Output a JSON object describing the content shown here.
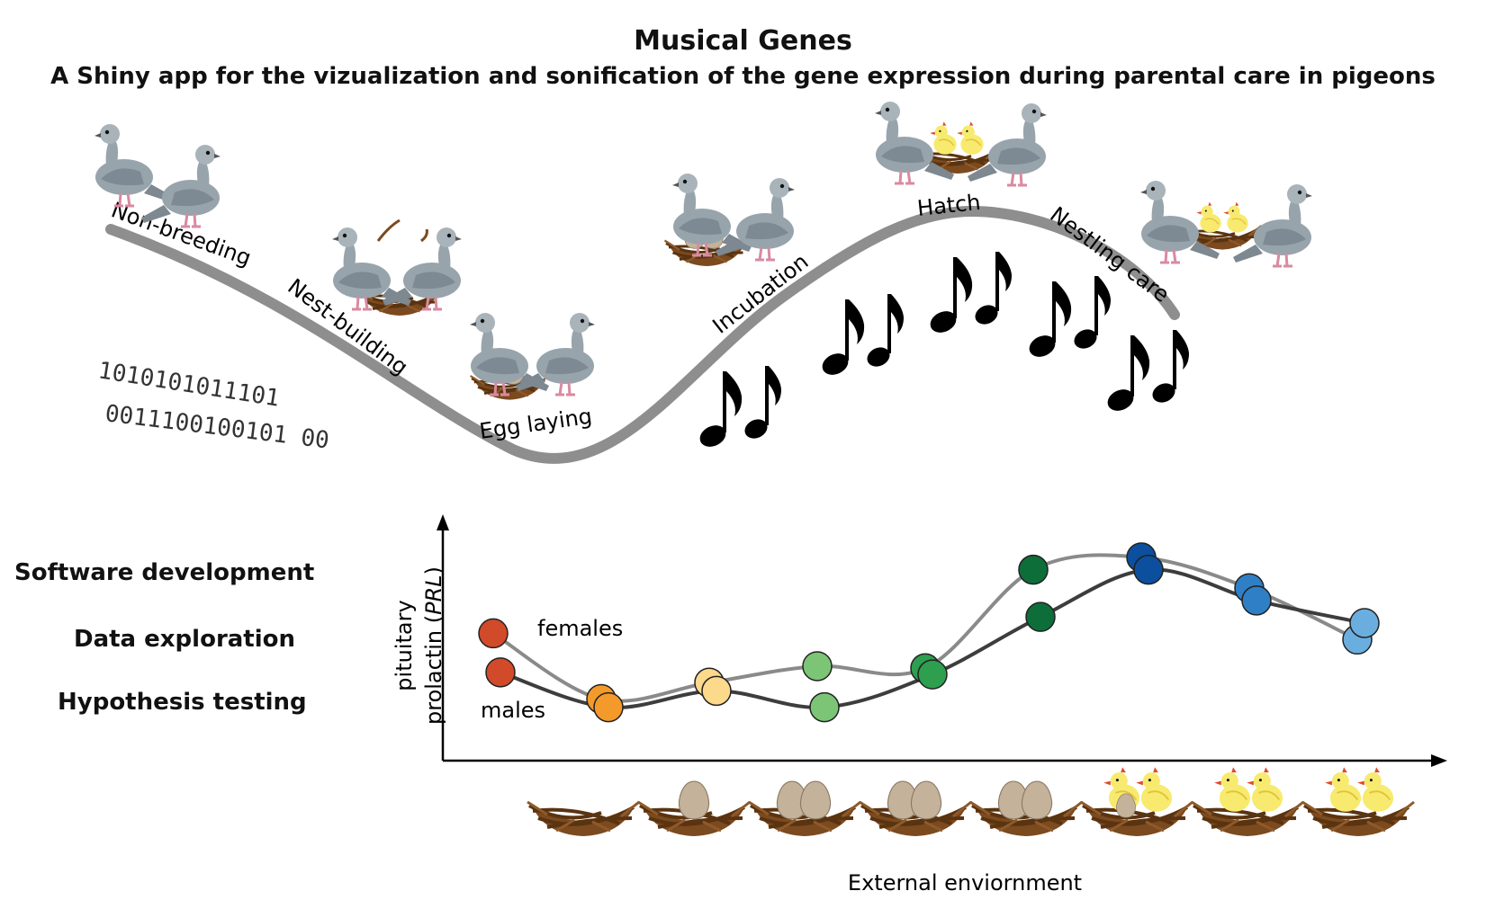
{
  "header": {
    "title": "Musical Genes",
    "subtitle": "A Shiny app for the vizualization and sonification of the gene expression during parental care in pigeons"
  },
  "stages": [
    "Non-breeding",
    "Nest-building",
    "Egg laying",
    "Incubation",
    "Hatch",
    "Nestling care"
  ],
  "binary": {
    "line1": "1010101011101",
    "line2": "0011100100101 00"
  },
  "applications": [
    "Software development",
    "Data exploration",
    "Hypothesis testing"
  ],
  "chart": {
    "ylabel_line1": "pituitary",
    "ylabel_line2_prefix": "prolactin (",
    "ylabel_gene": "PRL",
    "ylabel_line2_suffix": ")",
    "xlabel": "External enviornment",
    "series_labels": {
      "females": "females",
      "males": "males"
    }
  },
  "chart_data": {
    "type": "line",
    "x": [
      1,
      2,
      3,
      4,
      5,
      6,
      7,
      8,
      9
    ],
    "series": [
      {
        "name": "females",
        "values": [
          6.2,
          3.0,
          3.8,
          4.6,
          4.5,
          9.3,
          9.9,
          8.4,
          5.9
        ]
      },
      {
        "name": "males",
        "values": [
          4.3,
          2.6,
          3.4,
          2.6,
          4.2,
          7.0,
          9.3,
          7.8,
          6.7
        ]
      }
    ],
    "point_colors": [
      "#d14a2a",
      "#f39a2b",
      "#fcd98b",
      "#7cc576",
      "#2e9e4f",
      "#0d6e3a",
      "#0c4f9e",
      "#2f7fc7",
      "#6aaee0"
    ],
    "ylim": [
      0,
      12
    ],
    "xlim": [
      0.5,
      9.8
    ],
    "grid": false,
    "nest_contents": [
      "empty",
      "1 egg",
      "2 eggs",
      "2 eggs",
      "2 eggs",
      "hatching chicks",
      "2 chicks",
      "2 chicks"
    ]
  }
}
